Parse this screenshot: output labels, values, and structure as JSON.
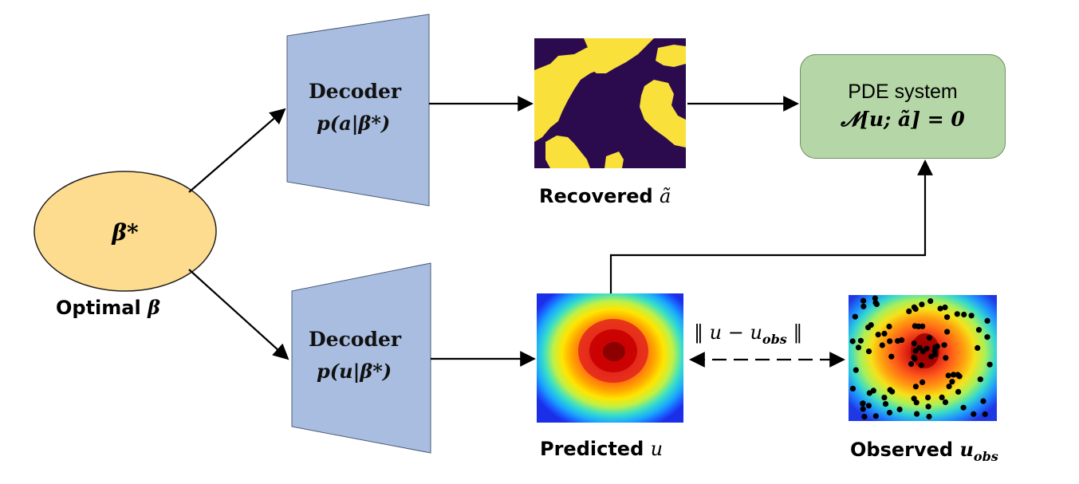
{
  "nodes": {
    "beta_symbol": "β*",
    "optimal_label_text": "Optimal ",
    "optimal_label_math": "β",
    "decoder_a": {
      "title": "Decoder",
      "expr": "p(a|β*)"
    },
    "decoder_u": {
      "title": "Decoder",
      "expr": "p(u|β*)"
    },
    "recovered_label_text": "Recovered ",
    "recovered_label_math": "ã",
    "predicted_label_text": "Predicted ",
    "predicted_label_math": "u",
    "observed_label_text": "Observed ",
    "observed_label_math": "u",
    "observed_label_sub": "obs",
    "pde_title": "PDE system",
    "pde_equation": "𝓝[u; ã] = 0",
    "norm_label": "‖ u − u",
    "norm_sub": "obs",
    "norm_end": " ‖"
  },
  "colors": {
    "ellipse_fill": "#fddc8f",
    "decoder_fill": "#a8bde0",
    "pde_fill": "#b5d6a7",
    "field_purple": "#2b0b4e",
    "field_yellow": "#f9e03b"
  }
}
